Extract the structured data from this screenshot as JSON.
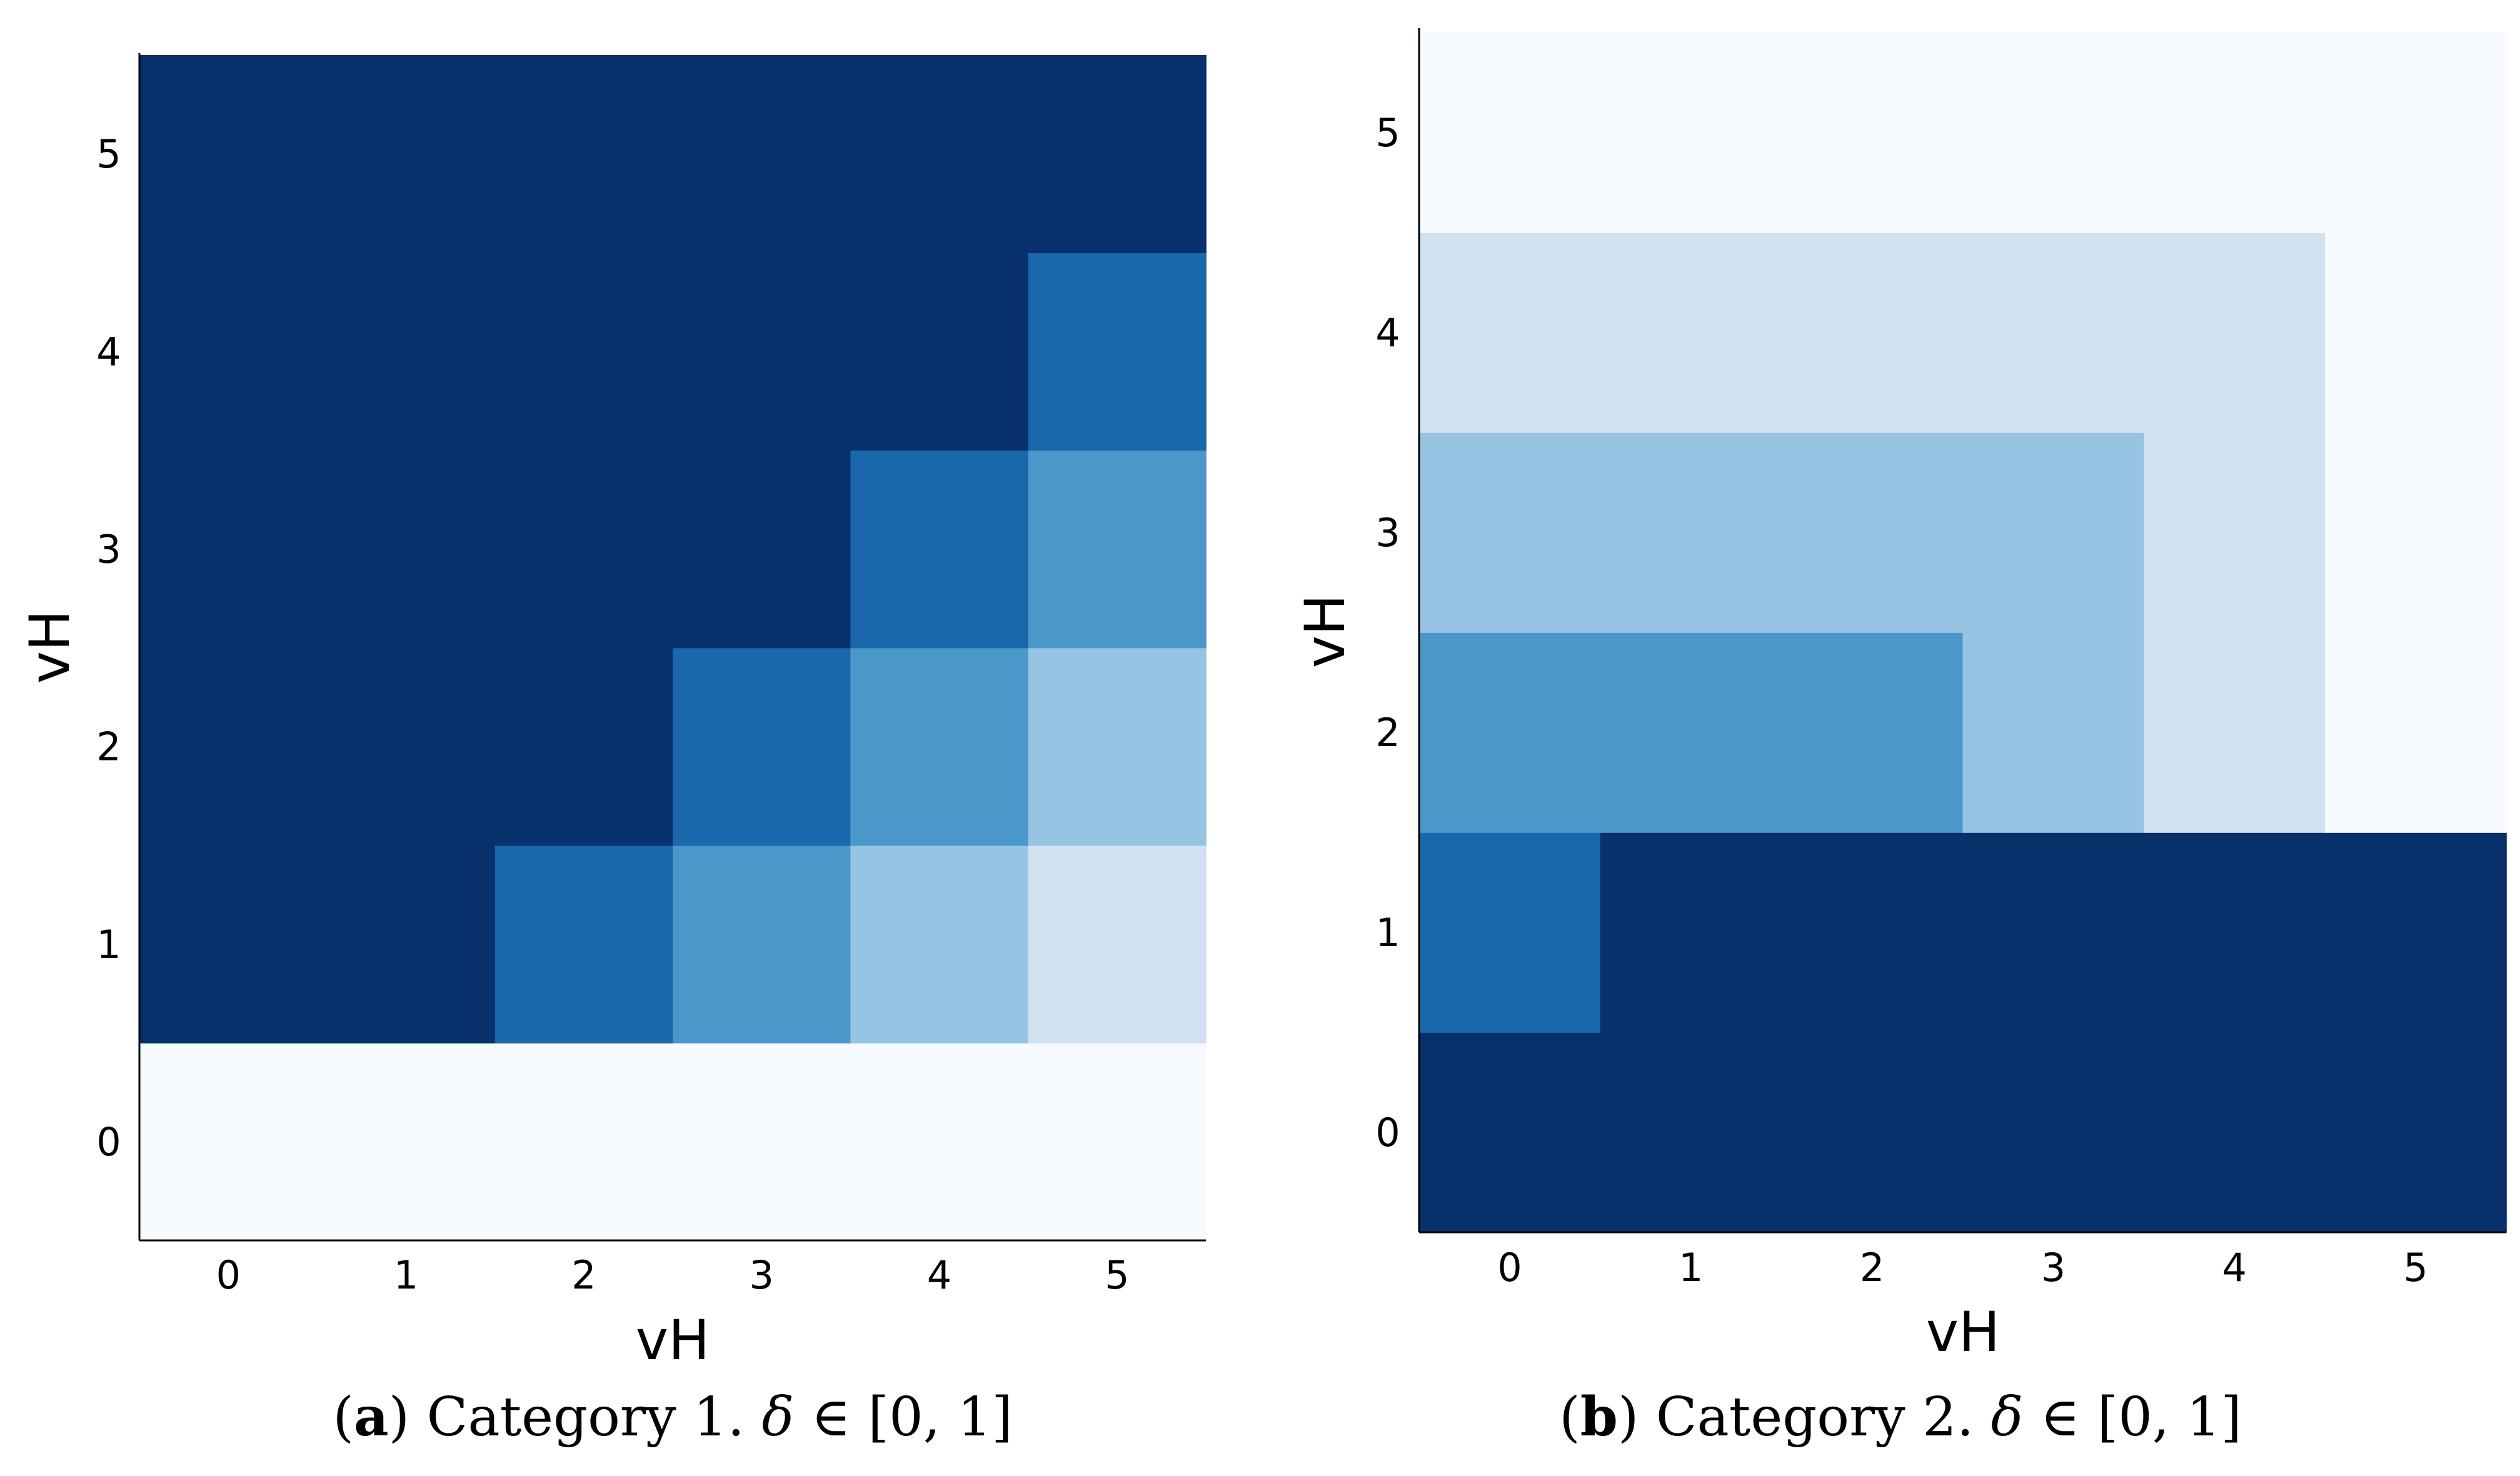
{
  "chart_data": [
    {
      "type": "heatmap",
      "title": "",
      "xlabel": "vH",
      "ylabel": "vH",
      "x_categories": [
        "0",
        "1",
        "2",
        "3",
        "4",
        "5"
      ],
      "y_categories": [
        "0",
        "1",
        "2",
        "3",
        "4",
        "5"
      ],
      "colormap": "Blues",
      "value_range": [
        0,
        5
      ],
      "values": [
        [
          0,
          0,
          0,
          0,
          0,
          0
        ],
        [
          5,
          5,
          4,
          3,
          2,
          1
        ],
        [
          5,
          5,
          5,
          4,
          3,
          2
        ],
        [
          5,
          5,
          5,
          5,
          4,
          3
        ],
        [
          5,
          5,
          5,
          5,
          5,
          4
        ],
        [
          5,
          5,
          5,
          5,
          5,
          5
        ]
      ],
      "caption": {
        "label": "a",
        "text": "Category 1.",
        "symbol": "δ",
        "condition": "∈ [0, 1]"
      }
    },
    {
      "type": "heatmap",
      "title": "",
      "xlabel": "vH",
      "ylabel": "vH",
      "x_categories": [
        "0",
        "1",
        "2",
        "3",
        "4",
        "5"
      ],
      "y_categories": [
        "0",
        "1",
        "2",
        "3",
        "4",
        "5"
      ],
      "colormap": "Blues",
      "value_range": [
        0,
        5
      ],
      "values": [
        [
          5,
          5,
          5,
          5,
          5,
          5
        ],
        [
          4,
          5,
          5,
          5,
          5,
          5
        ],
        [
          3,
          3,
          3,
          2,
          1,
          0
        ],
        [
          2,
          2,
          2,
          2,
          1,
          0
        ],
        [
          1,
          1,
          1,
          1,
          1,
          0
        ],
        [
          0,
          0,
          0,
          0,
          0,
          0
        ]
      ],
      "caption": {
        "label": "b",
        "text": "Category 2.",
        "symbol": "δ",
        "condition": "∈ [0, 1]"
      }
    }
  ],
  "colors": {
    "level_0": "#f7fbff",
    "level_1": "#d0e1f2",
    "level_2": "#96c4e2",
    "level_3": "#4a98c9",
    "level_4": "#1a67ab",
    "level_5": "#08306b",
    "axis": "#000000"
  }
}
